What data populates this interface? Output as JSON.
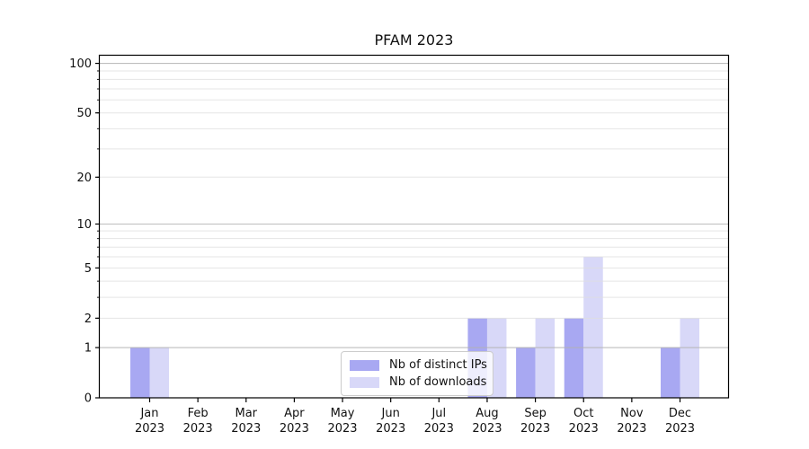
{
  "title": "PFAM 2023",
  "chart_data": {
    "type": "bar",
    "title": "PFAM 2023",
    "categories": [
      "Jan 2023",
      "Feb 2023",
      "Mar 2023",
      "Apr 2023",
      "May 2023",
      "Jun 2023",
      "Jul 2023",
      "Aug 2023",
      "Sep 2023",
      "Oct 2023",
      "Nov 2023",
      "Dec 2023"
    ],
    "x_tick_top": [
      "Jan",
      "Feb",
      "Mar",
      "Apr",
      "May",
      "Jun",
      "Jul",
      "Aug",
      "Sep",
      "Oct",
      "Nov",
      "Dec"
    ],
    "x_tick_bottom": "2023",
    "series": [
      {
        "name": "Nb of distinct IPs",
        "color": "#a8a8f2",
        "values": [
          1,
          0,
          0,
          0,
          0,
          0,
          0,
          2,
          1,
          2,
          0,
          1
        ]
      },
      {
        "name": "Nb of downloads",
        "color": "#d8d8f8",
        "values": [
          1,
          0,
          0,
          0,
          0,
          0,
          0,
          2,
          2,
          6,
          0,
          2
        ]
      }
    ],
    "yscale": "log1p",
    "yticks": [
      0,
      1,
      2,
      5,
      10,
      20,
      50,
      100
    ],
    "ylim": [
      0,
      112
    ],
    "grid": true,
    "grid_minor_values": [
      2,
      3,
      4,
      5,
      6,
      7,
      8,
      9,
      20,
      30,
      40,
      50,
      60,
      70,
      80,
      90
    ],
    "grid_major_values": [
      1,
      10,
      100
    ],
    "legend_position": "lower center"
  },
  "colors": {
    "background": "#ffffff",
    "axis": "#000000",
    "grid_minor": "#dfdfdf",
    "grid_major": "#b3b3b3",
    "text": "#111111",
    "legend_border": "#cccccc"
  }
}
